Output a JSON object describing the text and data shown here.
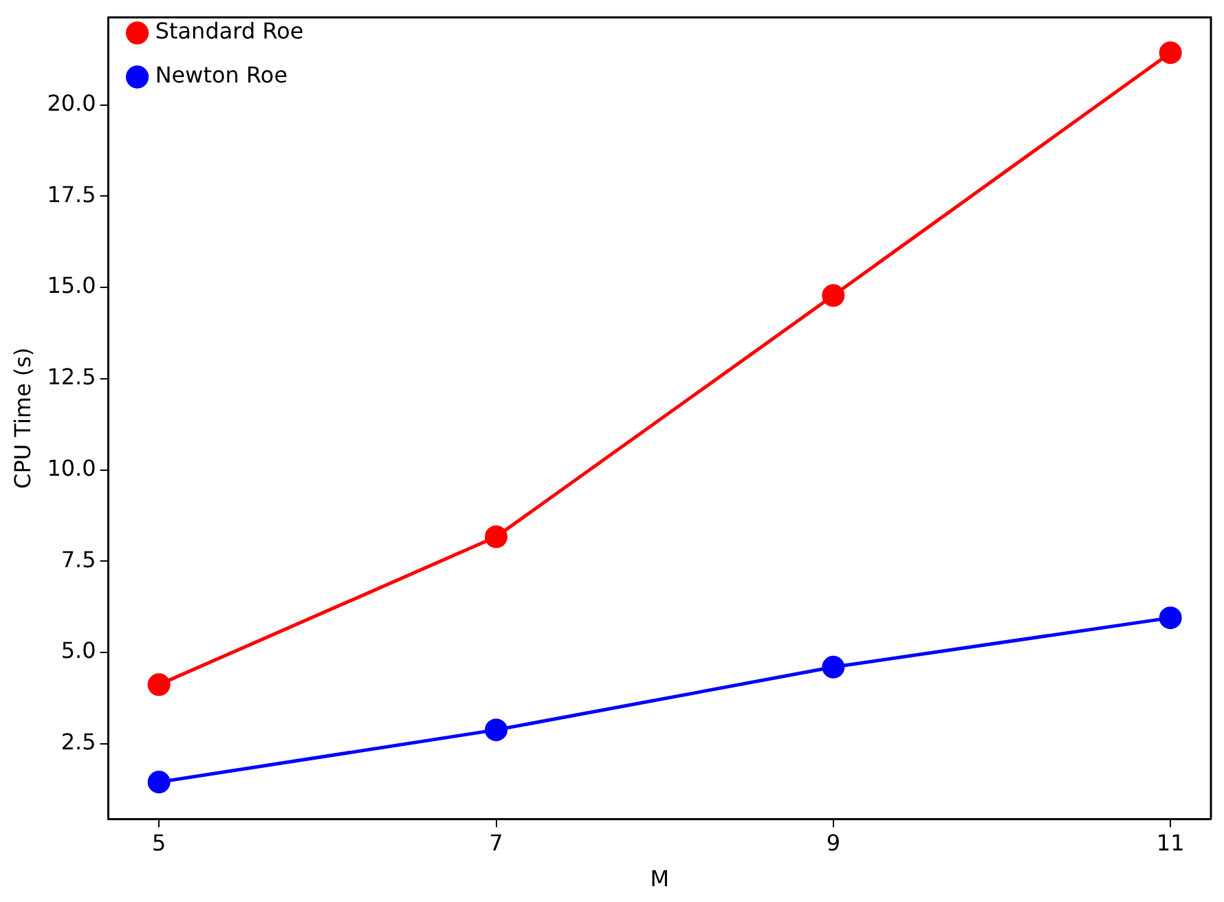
{
  "chart_data": {
    "type": "line",
    "xlabel": "M",
    "ylabel": "CPU Time (s)",
    "x": [
      5,
      7,
      9,
      11
    ],
    "series": [
      {
        "name": "Standard Roe",
        "color": "#ff0000",
        "values": [
          4.12,
          8.17,
          14.78,
          21.43
        ]
      },
      {
        "name": "Newton Roe",
        "color": "#0000ff",
        "values": [
          1.45,
          2.88,
          4.6,
          5.95
        ]
      }
    ],
    "xlim": [
      4.7,
      11.24
    ],
    "xticks": [
      5,
      7,
      9,
      11
    ],
    "ylim": [
      0.44,
      22.4
    ],
    "yticks": [
      2.5,
      {
        "value": 5,
        "label": "5.0"
      },
      7.5,
      {
        "value": 10,
        "label": "10.0"
      },
      12.5,
      {
        "value": 15,
        "label": "15.0"
      },
      17.5,
      {
        "value": 20,
        "label": "20.0"
      }
    ],
    "grid": false,
    "legend": "top left",
    "marker": "circle",
    "line_style": "solid"
  }
}
